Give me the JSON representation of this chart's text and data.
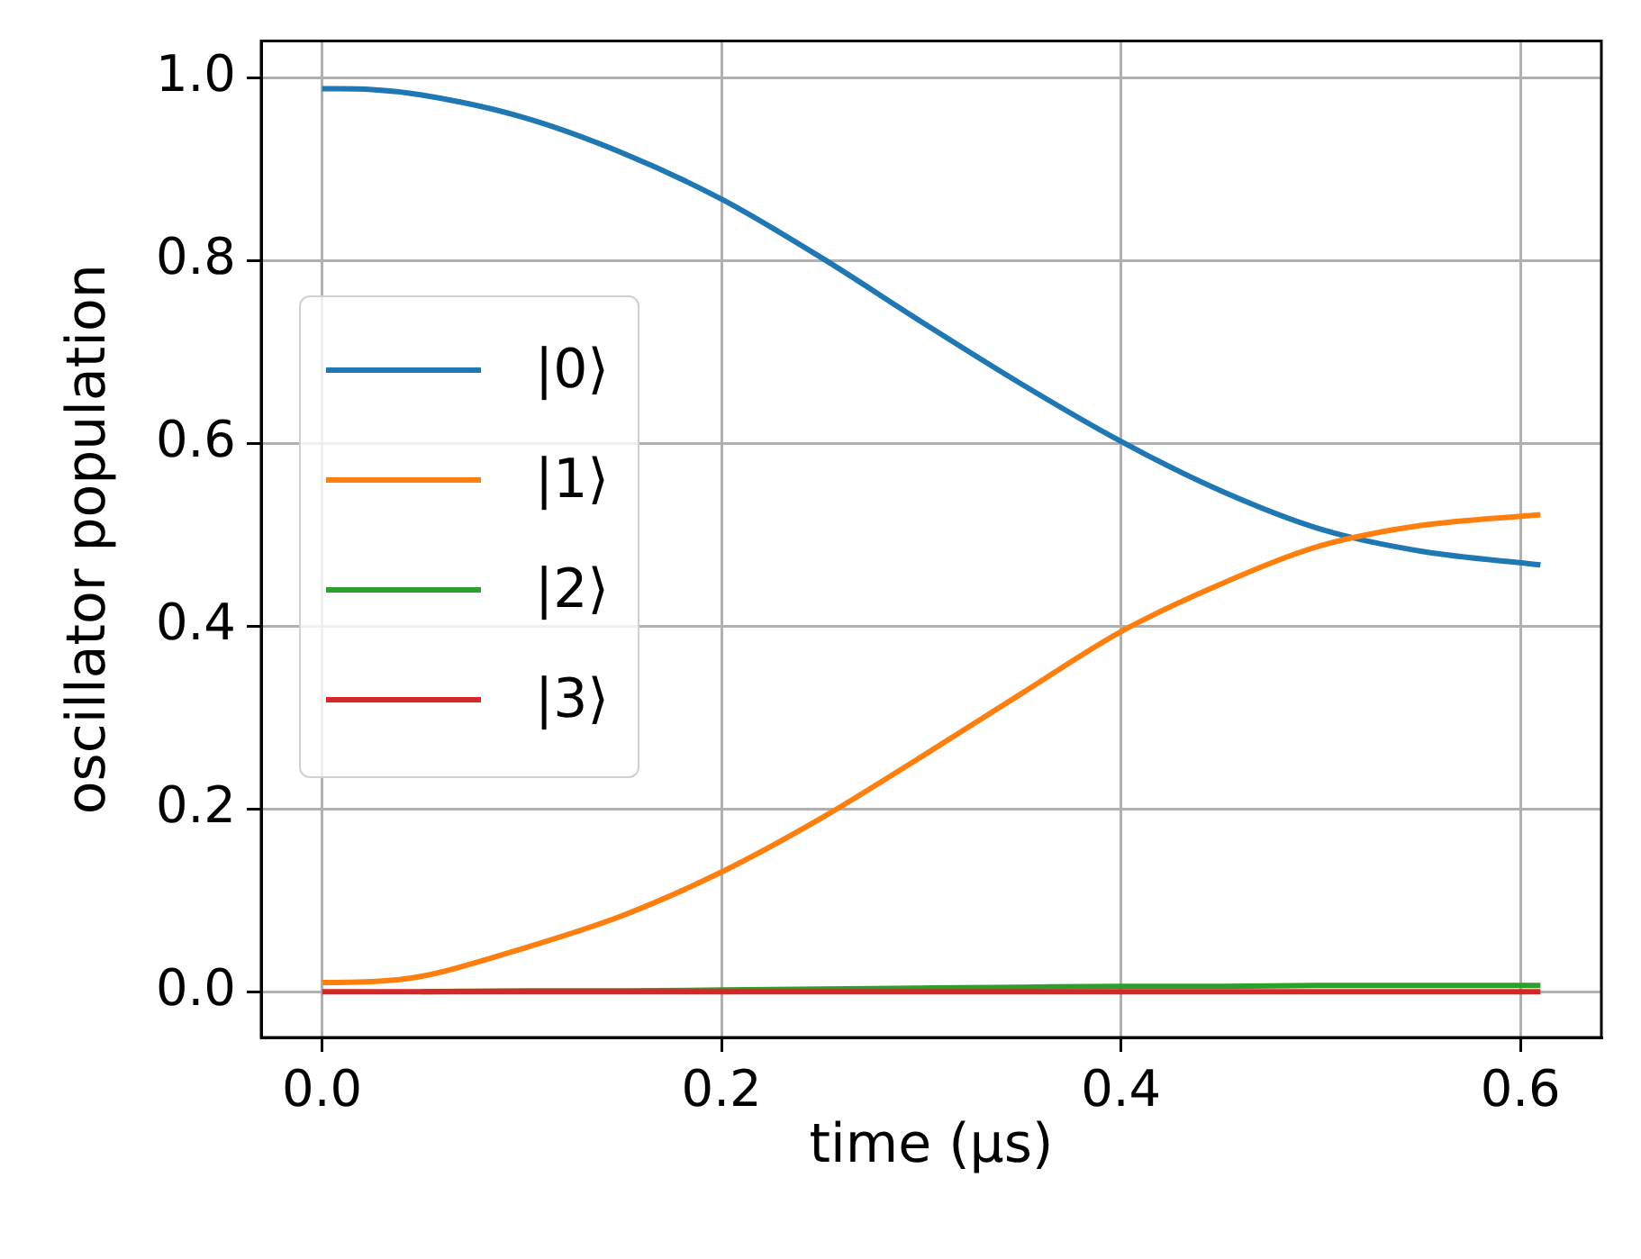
{
  "chart_data": {
    "type": "line",
    "xlabel": "time (μs)",
    "ylabel": "oscillator population",
    "x": [
      0,
      0.025,
      0.05,
      0.1,
      0.15,
      0.2,
      0.25,
      0.3,
      0.35,
      0.4,
      0.45,
      0.5,
      0.55,
      0.61
    ],
    "series": [
      {
        "name": "|0⟩",
        "color": "#1f77b4",
        "values": [
          0.988,
          0.987,
          0.981,
          0.957,
          0.918,
          0.867,
          0.803,
          0.733,
          0.665,
          0.602,
          0.548,
          0.506,
          0.482,
          0.467
        ]
      },
      {
        "name": "|1⟩",
        "color": "#ff7f0e",
        "values": [
          0.01,
          0.011,
          0.017,
          0.047,
          0.083,
          0.131,
          0.19,
          0.257,
          0.326,
          0.394,
          0.446,
          0.488,
          0.51,
          0.522
        ]
      },
      {
        "name": "|2⟩",
        "color": "#2ca02c",
        "values": [
          null,
          null,
          0,
          0.001,
          0.001,
          0.002,
          0.003,
          0.004,
          0.005,
          0.006,
          0.006,
          0.007,
          0.007,
          0.007
        ]
      },
      {
        "name": "|3⟩",
        "color": "#d62728",
        "values": [
          0,
          0,
          0,
          0,
          0,
          0,
          0,
          0,
          0,
          0,
          0,
          0,
          0,
          0
        ]
      }
    ],
    "xlim": [
      -0.0305,
      0.6405
    ],
    "xticks": [
      {
        "value": 0,
        "label": "0.0"
      },
      0.2,
      0.4,
      0.6
    ],
    "ylim": [
      -0.05,
      1.04
    ],
    "yticks": [
      {
        "value": 0,
        "label": "0.0"
      },
      0.2,
      0.4,
      0.6,
      0.8,
      {
        "value": 1,
        "label": "1.0"
      }
    ],
    "grid": true,
    "legend": "center left",
    "marker": "none",
    "line_style": "solid"
  }
}
